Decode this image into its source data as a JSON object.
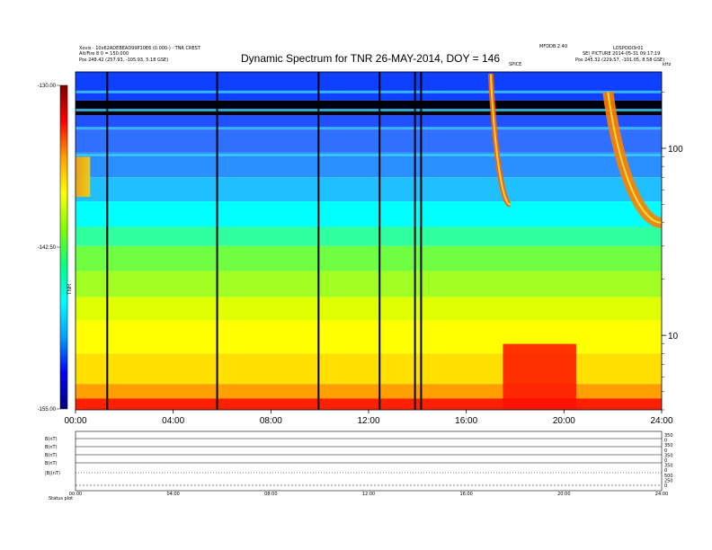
{
  "header": {
    "left_line1": "Xovis · 10x62ADEBEAD99P10E6 (0.000-) · TNR CREST",
    "left_line2": "Alt/Fire 8 0 = 150.000",
    "left_line3": "Pos     248.42 (257.93, -105.93, 5.18 GSE)",
    "center_small": "MFDDB 2.40",
    "right_line1": "LOSPOOl3r01",
    "right_line2": "SEI_PICTURE  2014-05-31  09:17:19",
    "right_line3": "Pos     245.32 (229.57, -101.05, 8.58 GSE)",
    "right_small": "kHz",
    "event_marker": "SPICE"
  },
  "chart_data": {
    "type": "heatmap",
    "title": "Dynamic Spectrum for TNR 26-MAY-2014, DOY = 146",
    "x_ticks": [
      "00:00",
      "04:00",
      "08:00",
      "12:00",
      "16:00",
      "20:00",
      "24:00"
    ],
    "xlim": [
      0,
      24
    ],
    "y_scale": "log",
    "ylim": [
      4,
      256
    ],
    "y_ticks": [
      "100",
      "10"
    ],
    "y_tick_values": [
      100,
      10
    ],
    "colorbar": {
      "ticks": [
        "-130.00",
        "-142.50",
        "-155.00"
      ],
      "tick_values": [
        -130,
        -142.5,
        -155
      ],
      "range": [
        -155,
        -130
      ],
      "label": "TNR",
      "colors": [
        "#000080",
        "#0000ff",
        "#00a0ff",
        "#00ffff",
        "#00ff80",
        "#80ff00",
        "#ffff00",
        "#ffa000",
        "#ff0000",
        "#800000"
      ]
    },
    "data_gaps_hours": [
      1.3,
      5.8,
      9.95,
      12.45,
      13.9,
      14.15
    ],
    "burst_events": [
      {
        "start_h": 17.0,
        "end_h": 17.8,
        "f_start_khz": 250,
        "f_end_khz": 50
      },
      {
        "start_h": 21.8,
        "end_h": 24.0,
        "f_start_khz": 200,
        "f_end_khz": 40
      }
    ],
    "intense_region": {
      "start_h": 17.5,
      "end_h": 20.5,
      "f_max_khz": 9
    }
  },
  "aux_panel": {
    "row_labels": [
      "B(nT)",
      "B(nT)",
      "B(nT)",
      "B(nT)",
      "|B|(nT)"
    ],
    "right_labels": [
      "350",
      "0",
      "350",
      "0",
      "350",
      "0",
      "350",
      "0",
      "500",
      "250",
      "0"
    ],
    "x_ticks": [
      "00:00",
      "04:00",
      "08:00",
      "12:00",
      "16:00",
      "20:00",
      "24:00"
    ],
    "footer": "Status  plot"
  }
}
